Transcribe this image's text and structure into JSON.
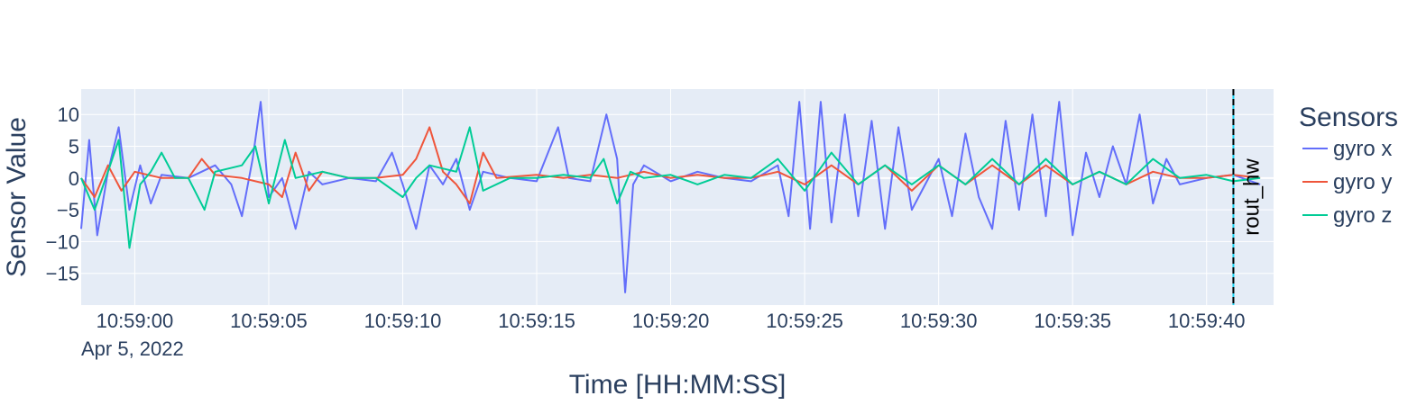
{
  "chart_data": {
    "type": "line",
    "title": "",
    "xlabel": "Time [HH:MM:SS]",
    "ylabel": "Sensor Value",
    "date_label": "Apr 5, 2022",
    "x_start": "10:58:58",
    "x_end": "10:59:42.5",
    "xlim": [
      "10:58:58",
      "10:59:42.5"
    ],
    "ylim": [
      -20,
      14
    ],
    "x_ticks": [
      "10:59:00",
      "10:59:05",
      "10:59:10",
      "10:59:15",
      "10:59:20",
      "10:59:25",
      "10:59:30",
      "10:59:35",
      "10:59:40"
    ],
    "y_ticks": [
      10,
      5,
      0,
      -5,
      -10,
      -15
    ],
    "grid": true,
    "legend_title": "Sensors",
    "legend_position": "right",
    "annotation": {
      "label": "rout_hw",
      "time": "10:59:41",
      "line_color": "#000000",
      "line_style": "dashed"
    },
    "series": [
      {
        "name": "gyro x",
        "color": "#636efa",
        "points": [
          [
            "10:58:58",
            -8
          ],
          [
            "10:58:58.3",
            6
          ],
          [
            "10:58:58.6",
            -9
          ],
          [
            "10:58:59",
            1
          ],
          [
            "10:58:59.4",
            8
          ],
          [
            "10:58:59.8",
            -5
          ],
          [
            "10:59:00.2",
            2
          ],
          [
            "10:59:00.6",
            -4
          ],
          [
            "10:59:01",
            0.5
          ],
          [
            "10:59:02",
            0
          ],
          [
            "10:59:03",
            2
          ],
          [
            "10:59:03.6",
            -1
          ],
          [
            "10:59:04",
            -6
          ],
          [
            "10:59:04.4",
            3
          ],
          [
            "10:59:04.7",
            12
          ],
          [
            "10:59:05",
            -3
          ],
          [
            "10:59:05.5",
            0
          ],
          [
            "10:59:06",
            -8
          ],
          [
            "10:59:06.5",
            1
          ],
          [
            "10:59:07",
            -1
          ],
          [
            "10:59:08",
            0
          ],
          [
            "10:59:09",
            -0.5
          ],
          [
            "10:59:09.6",
            4
          ],
          [
            "10:59:10",
            -1
          ],
          [
            "10:59:10.5",
            -8
          ],
          [
            "10:59:11",
            2
          ],
          [
            "10:59:11.5",
            -1
          ],
          [
            "10:59:12",
            3
          ],
          [
            "10:59:12.5",
            -5
          ],
          [
            "10:59:13",
            1
          ],
          [
            "10:59:14",
            0
          ],
          [
            "10:59:15",
            -0.5
          ],
          [
            "10:59:15.8",
            8
          ],
          [
            "10:59:16.2",
            0
          ],
          [
            "10:59:17",
            -0.5
          ],
          [
            "10:59:17.6",
            10
          ],
          [
            "10:59:18",
            3
          ],
          [
            "10:59:18.3",
            -18
          ],
          [
            "10:59:18.6",
            -1
          ],
          [
            "10:59:19",
            2
          ],
          [
            "10:59:20",
            -0.5
          ],
          [
            "10:59:21",
            1
          ],
          [
            "10:59:22",
            0
          ],
          [
            "10:59:23",
            -0.5
          ],
          [
            "10:59:24",
            2
          ],
          [
            "10:59:24.4",
            -6
          ],
          [
            "10:59:24.8",
            12
          ],
          [
            "10:59:25.2",
            -8
          ],
          [
            "10:59:25.6",
            12
          ],
          [
            "10:59:26",
            -7
          ],
          [
            "10:59:26.5",
            10
          ],
          [
            "10:59:27",
            -6
          ],
          [
            "10:59:27.5",
            9
          ],
          [
            "10:59:28",
            -8
          ],
          [
            "10:59:28.5",
            8
          ],
          [
            "10:59:29",
            -5
          ],
          [
            "10:59:30",
            3
          ],
          [
            "10:59:30.5",
            -6
          ],
          [
            "10:59:31",
            7
          ],
          [
            "10:59:31.5",
            -3
          ],
          [
            "10:59:32",
            -8
          ],
          [
            "10:59:32.5",
            9
          ],
          [
            "10:59:33",
            -5
          ],
          [
            "10:59:33.5",
            10
          ],
          [
            "10:59:34",
            -6
          ],
          [
            "10:59:34.5",
            12
          ],
          [
            "10:59:35",
            -9
          ],
          [
            "10:59:35.5",
            4
          ],
          [
            "10:59:36",
            -3
          ],
          [
            "10:59:36.5",
            5
          ],
          [
            "10:59:37",
            -1
          ],
          [
            "10:59:37.5",
            10
          ],
          [
            "10:59:38",
            -4
          ],
          [
            "10:59:38.5",
            3
          ],
          [
            "10:59:39",
            -1
          ],
          [
            "10:59:40",
            0
          ],
          [
            "10:59:41",
            0.5
          ],
          [
            "10:59:42",
            -1
          ]
        ]
      },
      {
        "name": "gyro y",
        "color": "#ef553b",
        "points": [
          [
            "10:58:58",
            0
          ],
          [
            "10:58:58.5",
            -3
          ],
          [
            "10:58:59",
            2
          ],
          [
            "10:58:59.5",
            -2
          ],
          [
            "10:59:00",
            1
          ],
          [
            "10:59:01",
            0
          ],
          [
            "10:59:02",
            0
          ],
          [
            "10:59:02.5",
            3
          ],
          [
            "10:59:03",
            0.5
          ],
          [
            "10:59:04",
            0
          ],
          [
            "10:59:05",
            -1
          ],
          [
            "10:59:05.5",
            -3
          ],
          [
            "10:59:06",
            4
          ],
          [
            "10:59:06.5",
            -2
          ],
          [
            "10:59:07",
            1
          ],
          [
            "10:59:08",
            0
          ],
          [
            "10:59:09",
            0
          ],
          [
            "10:59:10",
            0.5
          ],
          [
            "10:59:10.5",
            3
          ],
          [
            "10:59:11",
            8
          ],
          [
            "10:59:11.5",
            1
          ],
          [
            "10:59:12",
            -1
          ],
          [
            "10:59:12.5",
            -4
          ],
          [
            "10:59:13",
            4
          ],
          [
            "10:59:13.5",
            0
          ],
          [
            "10:59:15",
            0.5
          ],
          [
            "10:59:16",
            0
          ],
          [
            "10:59:17",
            0.5
          ],
          [
            "10:59:18",
            0
          ],
          [
            "10:59:19",
            1
          ],
          [
            "10:59:20",
            0
          ],
          [
            "10:59:21",
            0.5
          ],
          [
            "10:59:22",
            0
          ],
          [
            "10:59:23",
            0
          ],
          [
            "10:59:24",
            1
          ],
          [
            "10:59:25",
            -1
          ],
          [
            "10:59:26",
            2
          ],
          [
            "10:59:27",
            -1
          ],
          [
            "10:59:28",
            2
          ],
          [
            "10:59:29",
            -2
          ],
          [
            "10:59:30",
            2
          ],
          [
            "10:59:31",
            -1
          ],
          [
            "10:59:32",
            2
          ],
          [
            "10:59:33",
            -1
          ],
          [
            "10:59:34",
            2
          ],
          [
            "10:59:35",
            -1
          ],
          [
            "10:59:36",
            1
          ],
          [
            "10:59:37",
            -1
          ],
          [
            "10:59:38",
            1
          ],
          [
            "10:59:39",
            0
          ],
          [
            "10:59:40",
            0
          ],
          [
            "10:59:41",
            0.5
          ],
          [
            "10:59:42",
            0
          ]
        ]
      },
      {
        "name": "gyro z",
        "color": "#00cc96",
        "points": [
          [
            "10:58:58",
            0
          ],
          [
            "10:58:58.5",
            -5
          ],
          [
            "10:58:59",
            1
          ],
          [
            "10:58:59.4",
            6
          ],
          [
            "10:58:59.8",
            -11
          ],
          [
            "10:59:00.2",
            -1
          ],
          [
            "10:59:00.6",
            1
          ],
          [
            "10:59:01",
            4
          ],
          [
            "10:59:01.5",
            0
          ],
          [
            "10:59:02",
            0
          ],
          [
            "10:59:02.6",
            -5
          ],
          [
            "10:59:03",
            1
          ],
          [
            "10:59:04",
            2
          ],
          [
            "10:59:04.5",
            5
          ],
          [
            "10:59:05",
            -4
          ],
          [
            "10:59:05.6",
            6
          ],
          [
            "10:59:06",
            0
          ],
          [
            "10:59:07",
            1
          ],
          [
            "10:59:08",
            0
          ],
          [
            "10:59:09",
            0
          ],
          [
            "10:59:10",
            -3
          ],
          [
            "10:59:10.5",
            0
          ],
          [
            "10:59:11",
            2
          ],
          [
            "10:59:12",
            1
          ],
          [
            "10:59:12.5",
            8
          ],
          [
            "10:59:13",
            -2
          ],
          [
            "10:59:14",
            0
          ],
          [
            "10:59:15",
            0
          ],
          [
            "10:59:16",
            0.5
          ],
          [
            "10:59:17",
            0
          ],
          [
            "10:59:17.5",
            3
          ],
          [
            "10:59:18",
            -4
          ],
          [
            "10:59:18.5",
            1
          ],
          [
            "10:59:19",
            0
          ],
          [
            "10:59:20",
            0.5
          ],
          [
            "10:59:21",
            -1
          ],
          [
            "10:59:22",
            0.5
          ],
          [
            "10:59:23",
            0
          ],
          [
            "10:59:24",
            3
          ],
          [
            "10:59:25",
            -2
          ],
          [
            "10:59:26",
            4
          ],
          [
            "10:59:27",
            -1
          ],
          [
            "10:59:28",
            2
          ],
          [
            "10:59:29",
            -1
          ],
          [
            "10:59:30",
            2
          ],
          [
            "10:59:31",
            -1
          ],
          [
            "10:59:32",
            3
          ],
          [
            "10:59:33",
            -1
          ],
          [
            "10:59:34",
            3
          ],
          [
            "10:59:35",
            -1
          ],
          [
            "10:59:36",
            1
          ],
          [
            "10:59:37",
            -1
          ],
          [
            "10:59:38",
            3
          ],
          [
            "10:59:39",
            0
          ],
          [
            "10:59:40",
            0.5
          ],
          [
            "10:59:41",
            -0.5
          ],
          [
            "10:59:42",
            0
          ]
        ]
      }
    ]
  }
}
